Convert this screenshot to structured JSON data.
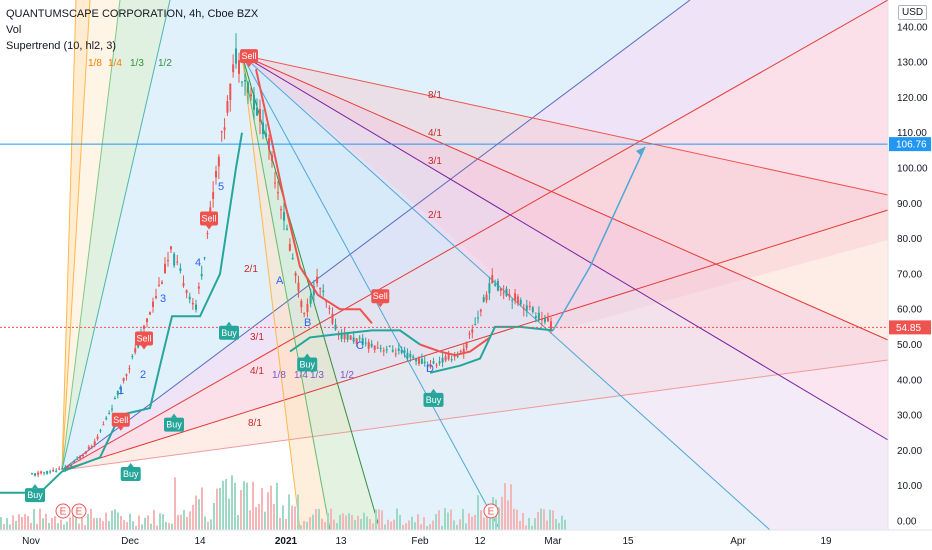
{
  "header": {
    "title": "QUANTUMSCAPE CORPORATION, 4h, Cboe BZX",
    "volume_label": "Vol",
    "indicator": "Supertrend (10, hl2, 3)",
    "currency": "USD"
  },
  "chart_data": {
    "type": "candlestick",
    "title": "QUANTUMSCAPE CORPORATION, 4h, Cboe BZX",
    "ylim": [
      0,
      140
    ],
    "y_ticks": [
      "0.00",
      "10.00",
      "20.00",
      "30.00",
      "40.00",
      "50.00",
      "60.00",
      "70.00",
      "80.00",
      "90.00",
      "100.00",
      "110.00",
      "120.00",
      "130.00",
      "140.00"
    ],
    "x_ticks": [
      "Nov",
      "Dec",
      "14",
      "2021",
      "13",
      "Feb",
      "12",
      "Mar",
      "15",
      "Apr",
      "19"
    ],
    "price_path": [
      {
        "t": "Nov",
        "p": 13
      },
      {
        "t": "Nov 12",
        "p": 15
      },
      {
        "t": "Nov 20",
        "p": 22
      },
      {
        "t": "Nov 27",
        "p": 36
      },
      {
        "t": "Dec 3",
        "p": 52
      },
      {
        "t": "Dec 9",
        "p": 76
      },
      {
        "t": "Dec 14",
        "p": 60
      },
      {
        "t": "Dec 18",
        "p": 98
      },
      {
        "t": "Dec 22",
        "p": 132
      },
      {
        "t": "Dec 28",
        "p": 110
      },
      {
        "t": "Jan 1",
        "p": 82
      },
      {
        "t": "Jan 5",
        "p": 58
      },
      {
        "t": "Jan 8",
        "p": 68
      },
      {
        "t": "Jan 13",
        "p": 53
      },
      {
        "t": "Jan 20",
        "p": 50
      },
      {
        "t": "Jan 27",
        "p": 48
      },
      {
        "t": "Feb 3",
        "p": 44
      },
      {
        "t": "Feb 10",
        "p": 48
      },
      {
        "t": "Feb 16",
        "p": 68
      },
      {
        "t": "Feb 22",
        "p": 62
      },
      {
        "t": "Mar",
        "p": 54.85
      }
    ],
    "current_price": "54.85",
    "horizontal_level": "106.76",
    "signals": [
      {
        "type": "Buy",
        "t": "Nov",
        "p": 11
      },
      {
        "type": "Sell",
        "t": "Nov 27",
        "p": 25
      },
      {
        "type": "Buy",
        "t": "Nov 30",
        "p": 17
      },
      {
        "type": "Sell",
        "t": "Dec 3",
        "p": 48
      },
      {
        "type": "Buy",
        "t": "Dec 9",
        "p": 31
      },
      {
        "type": "Sell",
        "t": "Dec 16",
        "p": 82
      },
      {
        "type": "Buy",
        "t": "Dec 20",
        "p": 57
      },
      {
        "type": "Sell",
        "t": "Dec 24",
        "p": 128
      },
      {
        "type": "Buy",
        "t": "Jan 5",
        "p": 48
      },
      {
        "type": "Sell",
        "t": "Jan 22",
        "p": 60
      },
      {
        "type": "Buy",
        "t": "Feb 3",
        "p": 38
      }
    ],
    "earnings_markers": [
      "E",
      "E",
      "E"
    ],
    "wave_labels": [
      "1",
      "2",
      "3",
      "4",
      "5",
      "A",
      "B",
      "C",
      "D"
    ],
    "gann_fan_labels_up": [
      "1/8",
      "1/4",
      "1/3",
      "1/2",
      "2/1",
      "3/1",
      "4/1",
      "8/1"
    ],
    "gann_fan_labels_down": [
      "8/1",
      "4/1",
      "3/1",
      "2/1",
      "1/8",
      "1/4",
      "1/3",
      "1/2"
    ],
    "colors": {
      "buy": "#26a69a",
      "sell": "#ef5350",
      "supertrend_up": "#26a69a",
      "supertrend_down": "#ef5350",
      "level": "#2196f3",
      "projection": "#4fa7d8"
    }
  }
}
